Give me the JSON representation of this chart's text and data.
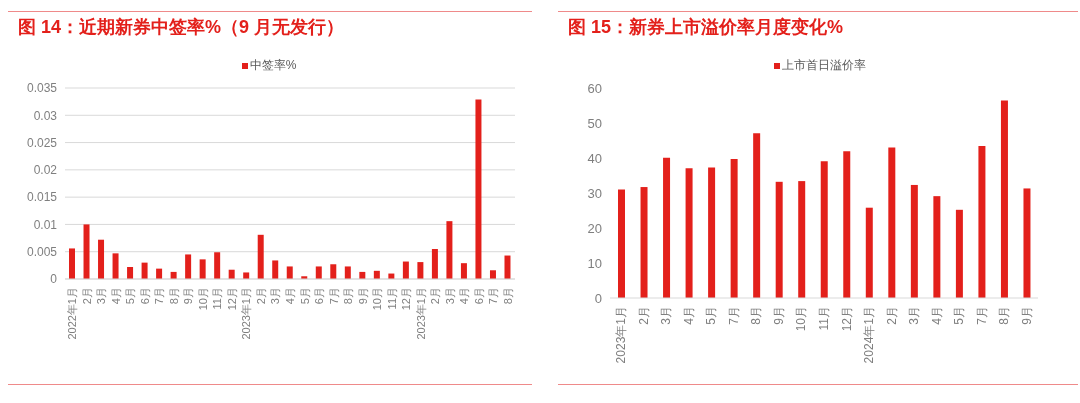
{
  "chart_data": [
    {
      "type": "bar",
      "title": "图 14：近期新券中签率%（9 月无发行）",
      "categories": [
        "2022年1月",
        "2月",
        "3月",
        "4月",
        "5月",
        "6月",
        "7月",
        "8月",
        "9月",
        "10月",
        "11月",
        "12月",
        "2023年1月",
        "2月",
        "3月",
        "4月",
        "5月",
        "6月",
        "7月",
        "8月",
        "9月",
        "10月",
        "11月",
        "12月",
        "2023年1月",
        "2月",
        "3月",
        "4月",
        "6月",
        "7月",
        "8月"
      ],
      "series": [
        {
          "name": "中签率%",
          "color": "#e3201b",
          "values": [
            0.0056,
            0.01,
            0.0072,
            0.0047,
            0.0022,
            0.003,
            0.0019,
            0.0013,
            0.0045,
            0.0036,
            0.0049,
            0.0017,
            0.0012,
            0.0081,
            0.0034,
            0.0023,
            0.0005,
            0.0023,
            0.0027,
            0.0023,
            0.0013,
            0.0015,
            0.001,
            0.0032,
            0.0031,
            0.0055,
            0.0106,
            0.0029,
            0.0329,
            0.0016,
            0.0043
          ]
        }
      ],
      "ylim": [
        0,
        0.035
      ],
      "yticks": [
        0,
        0.005,
        0.01,
        0.015,
        0.02,
        0.025,
        0.03,
        0.035
      ],
      "grid": "y",
      "legend": "top"
    },
    {
      "type": "bar",
      "title": "图 15：新券上市溢价率月度变化%",
      "categories": [
        "2023年1月",
        "2月",
        "3月",
        "4月",
        "5月",
        "7月",
        "8月",
        "9月",
        "10月",
        "11月",
        "12月",
        "2024年1月",
        "2月",
        "3月",
        "4月",
        "5月",
        "7月",
        "8月",
        "9月"
      ],
      "series": [
        {
          "name": "上市首日溢价率",
          "color": "#e3201b",
          "values": [
            31.0,
            31.7,
            40.1,
            37.1,
            37.3,
            39.7,
            47.1,
            33.2,
            33.4,
            39.1,
            41.9,
            25.8,
            43.0,
            32.3,
            29.1,
            25.2,
            43.4,
            56.4,
            31.3
          ]
        }
      ],
      "ylim": [
        0,
        60
      ],
      "yticks": [
        0,
        10,
        20,
        30,
        40,
        50,
        60
      ],
      "legend": "top"
    }
  ]
}
